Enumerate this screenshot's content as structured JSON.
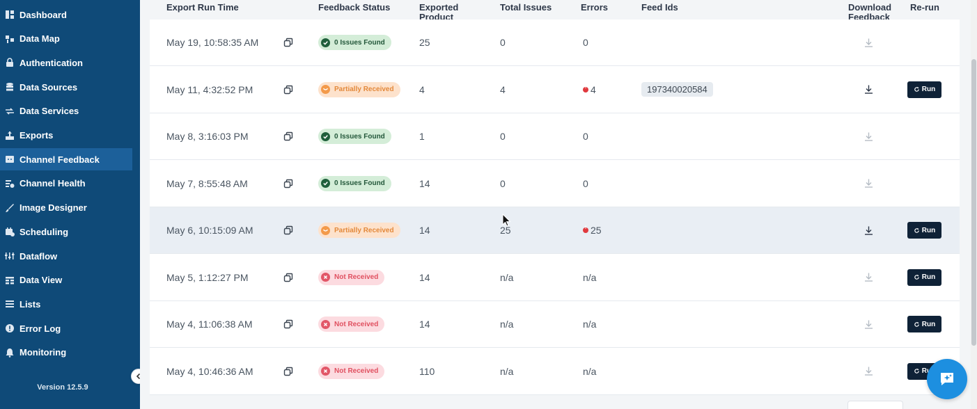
{
  "sidebar": {
    "items": [
      {
        "label": "Dashboard",
        "icon": "dashboard-icon",
        "active": false
      },
      {
        "label": "Data Map",
        "icon": "data-map-icon",
        "active": false
      },
      {
        "label": "Authentication",
        "icon": "lock-icon",
        "active": false
      },
      {
        "label": "Data Sources",
        "icon": "database-icon",
        "active": false
      },
      {
        "label": "Data Services",
        "icon": "swap-arrows-icon",
        "active": false
      },
      {
        "label": "Exports",
        "icon": "export-icon",
        "active": false
      },
      {
        "label": "Channel Feedback",
        "icon": "feedback-icon",
        "active": true
      },
      {
        "label": "Channel Health",
        "icon": "health-icon",
        "active": false
      },
      {
        "label": "Image Designer",
        "icon": "brush-icon",
        "active": false
      },
      {
        "label": "Scheduling",
        "icon": "calendar-icon",
        "active": false
      },
      {
        "label": "Dataflow",
        "icon": "dataflow-icon",
        "active": false
      },
      {
        "label": "Data View",
        "icon": "table-view-icon",
        "active": false
      },
      {
        "label": "Lists",
        "icon": "list-icon",
        "active": false
      },
      {
        "label": "Error Log",
        "icon": "error-log-icon",
        "active": false
      },
      {
        "label": "Monitoring",
        "icon": "bell-icon",
        "active": false
      }
    ],
    "version": "Version 12.5.9"
  },
  "table": {
    "headers": {
      "export_run_time": "Export Run Time",
      "feedback_status": "Feedback Status",
      "exported_products": "Exported Product",
      "total_issues": "Total Issues",
      "errors": "Errors",
      "feed_ids": "Feed Ids",
      "download_feedback": "Download Feedback",
      "rerun": "Re-run"
    },
    "run_label": "Run",
    "rows": [
      {
        "time": "May 19, 10:58:35 AM",
        "status": "0 Issues Found",
        "status_type": "ok",
        "exported": "25",
        "total_issues": "0",
        "errors": "0",
        "error_flag": false,
        "feed_id": "",
        "download_enabled": false,
        "has_run": false
      },
      {
        "time": "May 11, 4:32:52 PM",
        "status": "Partially Received",
        "status_type": "partial",
        "exported": "4",
        "total_issues": "4",
        "errors": "4",
        "error_flag": true,
        "feed_id": "197340020584",
        "download_enabled": true,
        "has_run": true
      },
      {
        "time": "May 8, 3:16:03 PM",
        "status": "0 Issues Found",
        "status_type": "ok",
        "exported": "1",
        "total_issues": "0",
        "errors": "0",
        "error_flag": false,
        "feed_id": "",
        "download_enabled": false,
        "has_run": false
      },
      {
        "time": "May 7, 8:55:48 AM",
        "status": "0 Issues Found",
        "status_type": "ok",
        "exported": "14",
        "total_issues": "0",
        "errors": "0",
        "error_flag": false,
        "feed_id": "",
        "download_enabled": false,
        "has_run": false
      },
      {
        "time": "May 6, 10:15:09 AM",
        "status": "Partially Received",
        "status_type": "partial",
        "exported": "14",
        "total_issues": "25",
        "errors": "25",
        "error_flag": true,
        "feed_id": "",
        "download_enabled": true,
        "has_run": true,
        "highlight": true
      },
      {
        "time": "May 5, 1:12:27 PM",
        "status": "Not Received",
        "status_type": "none",
        "exported": "14",
        "total_issues": "n/a",
        "errors": "n/a",
        "error_flag": false,
        "feed_id": "",
        "download_enabled": false,
        "has_run": true
      },
      {
        "time": "May 4, 11:06:38 AM",
        "status": "Not Received",
        "status_type": "none",
        "exported": "14",
        "total_issues": "n/a",
        "errors": "n/a",
        "error_flag": false,
        "feed_id": "",
        "download_enabled": false,
        "has_run": true
      },
      {
        "time": "May 4, 10:46:36 AM",
        "status": "Not Received",
        "status_type": "none",
        "exported": "110",
        "total_issues": "n/a",
        "errors": "n/a",
        "error_flag": false,
        "feed_id": "",
        "download_enabled": false,
        "has_run": true
      }
    ]
  },
  "colors": {
    "sidebar_bg": "#0f4a78",
    "sidebar_active": "#1c609a",
    "run_button": "#0f2237",
    "chat_fab": "#1d8fe0"
  }
}
